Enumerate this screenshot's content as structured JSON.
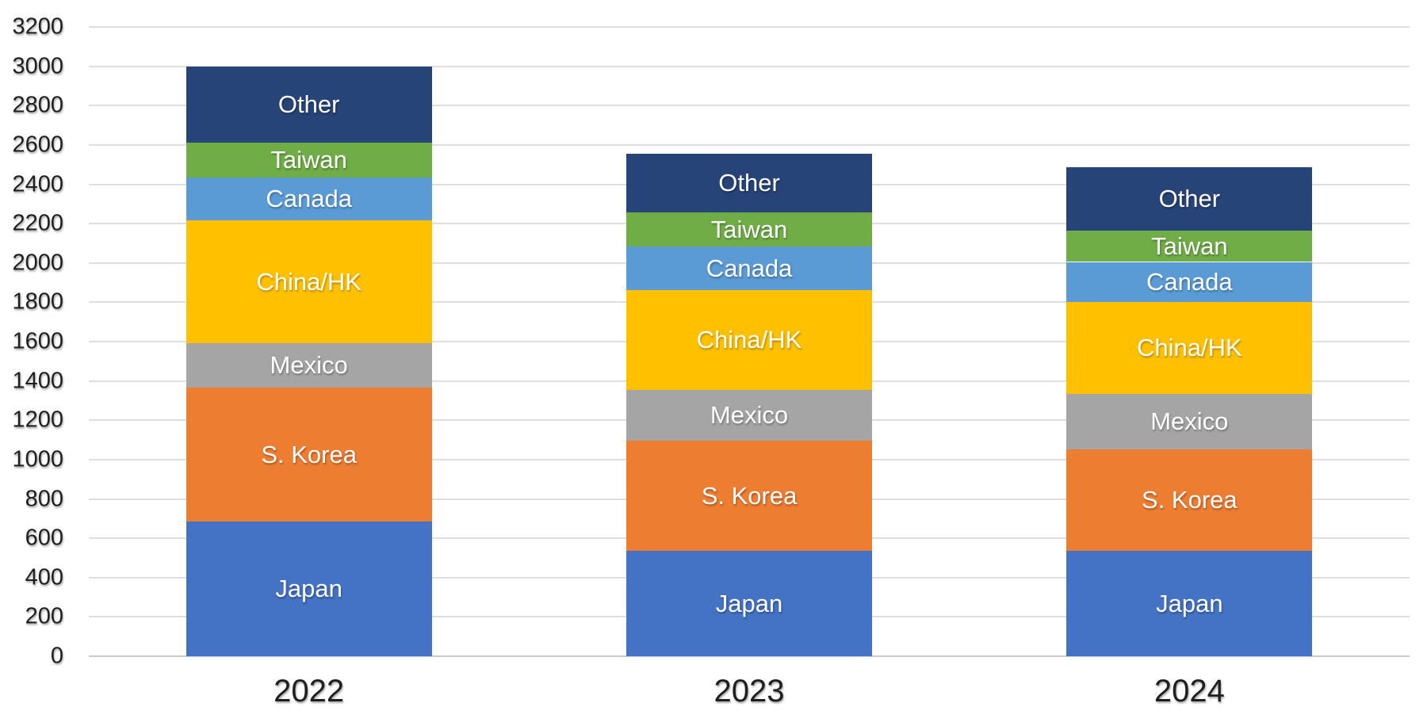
{
  "chart_data": {
    "type": "bar",
    "stacked": true,
    "title": "",
    "xlabel": "",
    "ylabel": "",
    "legend": "none",
    "grid": "horizontal",
    "background_color": "#ffffff",
    "gridline_color": "#dedede",
    "categories": [
      "2022",
      "2023",
      "2024"
    ],
    "series": [
      {
        "name": "Japan",
        "color": "#4472C4",
        "values": [
          685,
          535,
          535
        ]
      },
      {
        "name": "S. Korea",
        "color": "#ED7D31",
        "values": [
          680,
          560,
          515
        ]
      },
      {
        "name": "Mexico",
        "color": "#A5A5A5",
        "values": [
          225,
          260,
          285
        ]
      },
      {
        "name": "China/HK",
        "color": "#FFC000",
        "values": [
          625,
          505,
          465
        ]
      },
      {
        "name": "Canada",
        "color": "#5B9BD5",
        "values": [
          220,
          225,
          205
        ]
      },
      {
        "name": "Taiwan",
        "color": "#70AD47",
        "values": [
          175,
          170,
          160
        ]
      },
      {
        "name": "Other",
        "color": "#264478",
        "values": [
          390,
          300,
          320
        ]
      }
    ],
    "stack_totals": [
      3000,
      2555,
      2485
    ],
    "ylim": [
      0,
      3200
    ],
    "ytick_step": 200,
    "ytick_labels": [
      "0",
      "200",
      "400",
      "600",
      "800",
      "1000",
      "1200",
      "1400",
      "1600",
      "1800",
      "2000",
      "2200",
      "2400",
      "2600",
      "2800",
      "3000",
      "3200"
    ],
    "segment_labels_visible": true,
    "segment_label_color": "#ffffff",
    "axis_label_color": "#1f1f1f"
  }
}
